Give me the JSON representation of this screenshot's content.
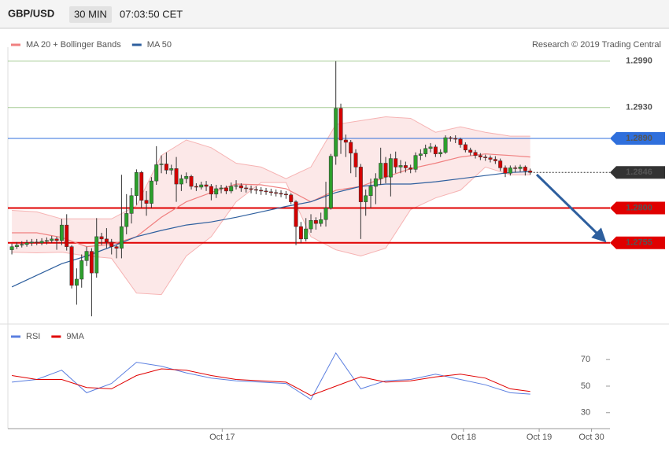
{
  "header": {
    "symbol": "GBP/USD",
    "timeframe": "30 MIN",
    "time": "07:03:50 CET",
    "credit": "Research © 2019 Trading Central"
  },
  "chart_data": [
    {
      "type": "candlestick",
      "up_color": "#2ca02c",
      "down_color": "#d40000",
      "xlim": [
        -0.8,
        120
      ],
      "ylim": [
        1.265,
        1.3008
      ],
      "ohlc": [
        [
          1.2746,
          1.2754,
          1.274,
          1.275
        ],
        [
          1.275,
          1.2756,
          1.2747,
          1.2752
        ],
        [
          1.2752,
          1.2757,
          1.2749,
          1.2753
        ],
        [
          1.2753,
          1.2759,
          1.275,
          1.2755
        ],
        [
          1.2755,
          1.276,
          1.2751,
          1.2756
        ],
        [
          1.2756,
          1.276,
          1.2752,
          1.2755
        ],
        [
          1.2755,
          1.2761,
          1.2752,
          1.2757
        ],
        [
          1.2757,
          1.2762,
          1.2753,
          1.2758
        ],
        [
          1.2758,
          1.2764,
          1.2755,
          1.276
        ],
        [
          1.276,
          1.2763,
          1.2746,
          1.2758
        ],
        [
          1.2758,
          1.2786,
          1.2752,
          1.2778
        ],
        [
          1.2778,
          1.2792,
          1.2745,
          1.275
        ],
        [
          1.275,
          1.2752,
          1.2696,
          1.27
        ],
        [
          1.27,
          1.2722,
          1.2675,
          1.2708
        ],
        [
          1.2708,
          1.274,
          1.2697,
          1.2732
        ],
        [
          1.2732,
          1.275,
          1.2725,
          1.2744
        ],
        [
          1.2744,
          1.2748,
          1.266,
          1.2716
        ],
        [
          1.2716,
          1.2787,
          1.271,
          1.2763
        ],
        [
          1.2763,
          1.2768,
          1.2752,
          1.276
        ],
        [
          1.276,
          1.2774,
          1.2748,
          1.2756
        ],
        [
          1.2756,
          1.276,
          1.274,
          1.275
        ],
        [
          1.275,
          1.2752,
          1.2735,
          1.2748
        ],
        [
          1.2748,
          1.2843,
          1.2735,
          1.2776
        ],
        [
          1.2776,
          1.2818,
          1.2766,
          1.2793
        ],
        [
          1.2793,
          1.2826,
          1.278,
          1.2816
        ],
        [
          1.2816,
          1.285,
          1.2804,
          1.2846
        ],
        [
          1.2846,
          1.2848,
          1.28,
          1.281
        ],
        [
          1.281,
          1.2822,
          1.279,
          1.2806
        ],
        [
          1.2806,
          1.284,
          1.28,
          1.2835
        ],
        [
          1.2835,
          1.288,
          1.283,
          1.2856
        ],
        [
          1.2856,
          1.2868,
          1.2845,
          1.2857
        ],
        [
          1.2857,
          1.2872,
          1.2844,
          1.2849
        ],
        [
          1.2849,
          1.2856,
          1.2843,
          1.2851
        ],
        [
          1.2851,
          1.2866,
          1.2808,
          1.2831
        ],
        [
          1.2831,
          1.2843,
          1.2822,
          1.2838
        ],
        [
          1.2838,
          1.2846,
          1.2832,
          1.2841
        ],
        [
          1.2841,
          1.2843,
          1.2824,
          1.2828
        ],
        [
          1.2828,
          1.2832,
          1.2822,
          1.2827
        ],
        [
          1.2827,
          1.2834,
          1.2824,
          1.283
        ],
        [
          1.283,
          1.2835,
          1.2822,
          1.2828
        ],
        [
          1.2828,
          1.2831,
          1.281,
          1.2818
        ],
        [
          1.2818,
          1.283,
          1.2813,
          1.2825
        ],
        [
          1.2825,
          1.283,
          1.2819,
          1.2826
        ],
        [
          1.2826,
          1.2829,
          1.2818,
          1.2822
        ],
        [
          1.2822,
          1.2833,
          1.2819,
          1.2828
        ],
        [
          1.2828,
          1.2836,
          1.2824,
          1.2829
        ],
        [
          1.2829,
          1.2832,
          1.2821,
          1.2826
        ],
        [
          1.2826,
          1.283,
          1.282,
          1.2825
        ],
        [
          1.2825,
          1.2829,
          1.2819,
          1.2824
        ],
        [
          1.2824,
          1.2828,
          1.2818,
          1.2823
        ],
        [
          1.2823,
          1.2827,
          1.2817,
          1.2822
        ],
        [
          1.2822,
          1.2826,
          1.2817,
          1.2821
        ],
        [
          1.2821,
          1.2825,
          1.2816,
          1.282
        ],
        [
          1.282,
          1.2824,
          1.2815,
          1.2819
        ],
        [
          1.2819,
          1.2823,
          1.2814,
          1.2818
        ],
        [
          1.2818,
          1.2822,
          1.2812,
          1.2817
        ],
        [
          1.2817,
          1.2819,
          1.2805,
          1.2808
        ],
        [
          1.2808,
          1.281,
          1.2752,
          1.2776
        ],
        [
          1.2776,
          1.2782,
          1.2755,
          1.276
        ],
        [
          1.276,
          1.2787,
          1.2757,
          1.2773
        ],
        [
          1.2773,
          1.2792,
          1.2768,
          1.2784
        ],
        [
          1.2784,
          1.2788,
          1.2772,
          1.278
        ],
        [
          1.278,
          1.2794,
          1.2776,
          1.2785
        ],
        [
          1.2785,
          1.2834,
          1.2776,
          1.28
        ],
        [
          1.28,
          1.287,
          1.2798,
          1.2867
        ],
        [
          1.2867,
          1.299,
          1.2856,
          1.2929
        ],
        [
          1.2929,
          1.2935,
          1.287,
          1.2888
        ],
        [
          1.2888,
          1.2895,
          1.2866,
          1.2885
        ],
        [
          1.2885,
          1.2888,
          1.2845,
          1.2871
        ],
        [
          1.2871,
          1.2876,
          1.284,
          1.2853
        ],
        [
          1.2853,
          1.2857,
          1.276,
          1.2808
        ],
        [
          1.2808,
          1.2824,
          1.279,
          1.2816
        ],
        [
          1.2816,
          1.2838,
          1.28,
          1.2828
        ],
        [
          1.2828,
          1.2845,
          1.2805,
          1.2838
        ],
        [
          1.2838,
          1.2878,
          1.283,
          1.2858
        ],
        [
          1.2858,
          1.2866,
          1.2832,
          1.284
        ],
        [
          1.284,
          1.287,
          1.2815,
          1.2864
        ],
        [
          1.2864,
          1.2873,
          1.2845,
          1.2853
        ],
        [
          1.2853,
          1.2862,
          1.2845,
          1.2855
        ],
        [
          1.2855,
          1.286,
          1.2846,
          1.2852
        ],
        [
          1.2852,
          1.2856,
          1.2845,
          1.285
        ],
        [
          1.285,
          1.2872,
          1.2846,
          1.2868
        ],
        [
          1.2868,
          1.2876,
          1.2862,
          1.287
        ],
        [
          1.287,
          1.2882,
          1.2866,
          1.2877
        ],
        [
          1.2877,
          1.2884,
          1.2872,
          1.2879
        ],
        [
          1.2879,
          1.2882,
          1.2866,
          1.287
        ],
        [
          1.287,
          1.2876,
          1.2866,
          1.2872
        ],
        [
          1.2872,
          1.2894,
          1.287,
          1.2891
        ],
        [
          1.2891,
          1.2893,
          1.2886,
          1.289
        ],
        [
          1.289,
          1.2894,
          1.2884,
          1.2889
        ],
        [
          1.2889,
          1.2891,
          1.2878,
          1.2882
        ],
        [
          1.2882,
          1.2885,
          1.2872,
          1.2875
        ],
        [
          1.2875,
          1.2878,
          1.2868,
          1.2872
        ],
        [
          1.2872,
          1.2875,
          1.2864,
          1.2868
        ],
        [
          1.2868,
          1.2871,
          1.2862,
          1.2866
        ],
        [
          1.2866,
          1.2869,
          1.2861,
          1.2865
        ],
        [
          1.2865,
          1.2868,
          1.2859,
          1.2863
        ],
        [
          1.2863,
          1.2867,
          1.2857,
          1.2861
        ],
        [
          1.2861,
          1.2864,
          1.2848,
          1.2852
        ],
        [
          1.2852,
          1.2855,
          1.284,
          1.2845
        ],
        [
          1.2845,
          1.2855,
          1.2842,
          1.2852
        ],
        [
          1.2852,
          1.2855,
          1.2846,
          1.2851
        ],
        [
          1.2851,
          1.2856,
          1.2847,
          1.2853
        ],
        [
          1.2853,
          1.2855,
          1.2842,
          1.2848
        ],
        [
          1.2848,
          1.2851,
          1.2843,
          1.2846
        ]
      ],
      "x": [
        0,
        5,
        10,
        15,
        20,
        25,
        30,
        35,
        40,
        45,
        50,
        55,
        60,
        65,
        70,
        75,
        80,
        85,
        90,
        95,
        100,
        104
      ],
      "series": [
        {
          "name": "MA 20 + Bollinger Bands",
          "color": "#f08080",
          "band_color": "#f6b3b3",
          "values": [
            1.2768,
            1.2768,
            1.2762,
            1.275,
            1.2753,
            1.2763,
            1.2788,
            1.2808,
            1.282,
            1.2831,
            1.283,
            1.2825,
            1.2808,
            1.2823,
            1.2828,
            1.284,
            1.2851,
            1.2858,
            1.2866,
            1.287,
            1.2868,
            1.2866
          ],
          "upper": [
            1.2797,
            1.2795,
            1.2786,
            1.2786,
            1.2786,
            1.2803,
            1.2868,
            1.2888,
            1.2878,
            1.2858,
            1.2853,
            1.2838,
            1.2853,
            1.2908,
            1.2913,
            1.2918,
            1.2916,
            1.2898,
            1.2905,
            1.2898,
            1.2893,
            1.2893
          ],
          "lower": [
            1.2743,
            1.2742,
            1.2743,
            1.2738,
            1.2735,
            1.269,
            1.2688,
            1.2738,
            1.2763,
            1.2808,
            1.2833,
            1.2833,
            1.2763,
            1.2746,
            1.2738,
            1.2748,
            1.2798,
            1.2813,
            1.2823,
            1.2853,
            1.2843,
            1.2843
          ]
        },
        {
          "name": "MA 50",
          "color": "#2e5f9e",
          "values": [
            1.2698,
            1.2713,
            1.2728,
            1.2738,
            1.275,
            1.2763,
            1.2771,
            1.2778,
            1.2782,
            1.2788,
            1.2795,
            1.2802,
            1.2808,
            1.282,
            1.2828,
            1.2831,
            1.2831,
            1.2834,
            1.2838,
            1.2842,
            1.2846,
            1.2847
          ]
        }
      ],
      "levels": [
        {
          "value": 1.299,
          "label": "1.2990",
          "color": "#6aa84f",
          "box": false,
          "line": "solid"
        },
        {
          "value": 1.293,
          "label": "1.2930",
          "color": "#6aa84f",
          "box": false,
          "line": "solid"
        },
        {
          "value": 1.289,
          "label": "1.2890",
          "color": "#2f6fdc",
          "box": true,
          "line": "solid"
        },
        {
          "value": 1.2846,
          "color": "#333333",
          "box": true,
          "line": "dotted"
        },
        {
          "value": 1.28,
          "label": "1.2800",
          "color": "#e00000",
          "box": true,
          "line": "solid"
        },
        {
          "value": 1.2755,
          "color": "#e00000",
          "box": true,
          "line": "solid"
        }
      ]
    },
    {
      "type": "line",
      "x": [
        0,
        5,
        10,
        15,
        20,
        25,
        30,
        35,
        40,
        45,
        50,
        55,
        60,
        65,
        70,
        75,
        80,
        85,
        90,
        95,
        100,
        104
      ],
      "xlim": [
        -0.8,
        120
      ],
      "ylim": [
        18,
        95
      ],
      "yticks": [
        30,
        50,
        70
      ],
      "xticks": [
        {
          "value": 42.2,
          "label": "Oct 17"
        },
        {
          "value": 90.6,
          "label": "Oct 18"
        },
        {
          "value": 105.8,
          "label": "Oct 19"
        },
        {
          "value": 116.3,
          "label": "Oct 30"
        }
      ],
      "series": [
        {
          "name": "RSI",
          "color": "#5b7fe0",
          "values": [
            53,
            55,
            62,
            45,
            52,
            68,
            65,
            60,
            56,
            54,
            53,
            52,
            40,
            75,
            48,
            54,
            55,
            59,
            55,
            51,
            45,
            44
          ]
        },
        {
          "name": "9MA",
          "color": "#e00000",
          "values": [
            58,
            55,
            55,
            49,
            48,
            58,
            63,
            62,
            58,
            55,
            54,
            53,
            43,
            50,
            57,
            53,
            54,
            57,
            59,
            56,
            48,
            46
          ]
        }
      ]
    }
  ]
}
